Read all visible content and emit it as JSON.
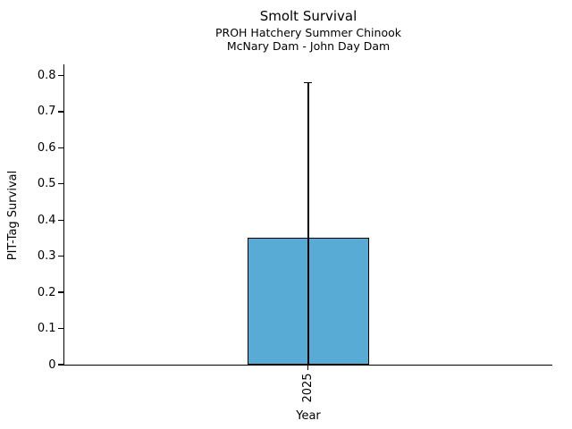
{
  "chart_data": {
    "type": "bar",
    "title": "Smolt Survival",
    "subtitle1": "PROH Hatchery Summer Chinook",
    "subtitle2": "McNary Dam - John Day Dam",
    "xlabel": "Year",
    "ylabel": "PIT-Tag Survival",
    "categories": [
      "2025"
    ],
    "values": [
      0.35
    ],
    "error_upper": [
      0.78
    ],
    "error_lower": [
      0
    ],
    "ylim": [
      0,
      0.83
    ],
    "yticks": [
      0,
      0.1,
      0.2,
      0.3,
      0.4,
      0.5,
      0.6,
      0.7,
      0.8
    ],
    "ytick_labels": [
      "0",
      "0.1",
      "0.2",
      "0.3",
      "0.4",
      "0.5",
      "0.6",
      "0.7",
      "0.8"
    ],
    "grid": false,
    "legend": "none",
    "bar_color": "#58ABD5",
    "bar_edge_color": "#000000",
    "error_color": "#000000",
    "text_color": "#000000",
    "background_color": "#ffffff"
  }
}
